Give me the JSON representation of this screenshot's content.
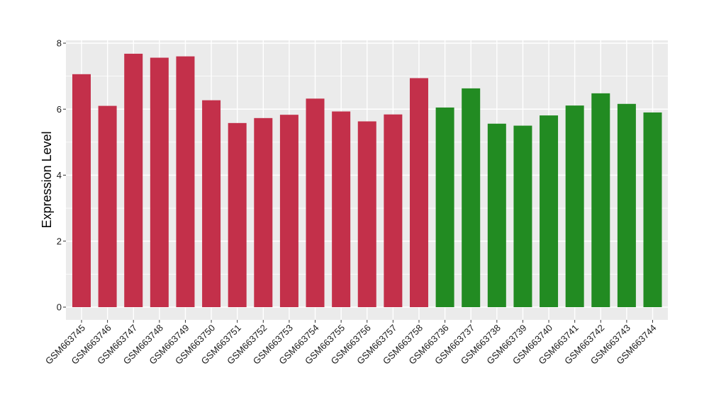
{
  "chart_data": {
    "type": "bar",
    "title": "",
    "xlabel": "",
    "ylabel": "Expression Level",
    "ylim": [
      0,
      8
    ],
    "yticks": [
      0,
      2,
      4,
      6,
      8
    ],
    "grid": true,
    "legend": "none",
    "categories": [
      "GSM663745",
      "GSM663746",
      "GSM663747",
      "GSM663748",
      "GSM663749",
      "GSM663750",
      "GSM663751",
      "GSM663752",
      "GSM663753",
      "GSM663754",
      "GSM663755",
      "GSM663756",
      "GSM663757",
      "GSM663758",
      "GSM663736",
      "GSM663737",
      "GSM663738",
      "GSM663739",
      "GSM663740",
      "GSM663741",
      "GSM663742",
      "GSM663743",
      "GSM663744"
    ],
    "values": [
      7.06,
      6.1,
      7.68,
      7.56,
      7.6,
      6.27,
      5.58,
      5.73,
      5.83,
      6.32,
      5.93,
      5.63,
      5.84,
      6.94,
      6.05,
      6.63,
      5.56,
      5.5,
      5.81,
      6.11,
      6.48,
      6.16,
      5.9
    ],
    "groups": [
      0,
      0,
      0,
      0,
      0,
      0,
      0,
      0,
      0,
      0,
      0,
      0,
      0,
      0,
      1,
      1,
      1,
      1,
      1,
      1,
      1,
      1,
      1
    ],
    "group_colors": [
      "#c3304a",
      "#228b22"
    ],
    "panel_color": "#ebebeb",
    "grid_color": "#ffffff"
  }
}
